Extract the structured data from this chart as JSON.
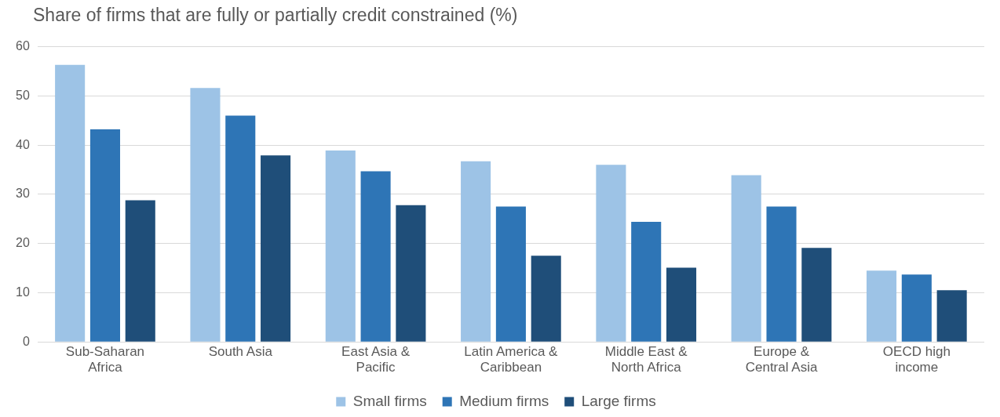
{
  "chart_data": {
    "type": "bar",
    "title": "Share of firms that are fully or partially credit constrained (%)",
    "categories": [
      "Sub-Saharan Africa",
      "South Asia",
      "East Asia & Pacific",
      "Latin America & Caribbean",
      "Middle East & North Africa",
      "Europe & Central Asia",
      "OECD high income"
    ],
    "series": [
      {
        "name": "Small firms",
        "color": "#9dc3e6",
        "values": [
          56.3,
          51.6,
          38.9,
          36.7,
          36.0,
          33.9,
          14.5
        ]
      },
      {
        "name": "Medium firms",
        "color": "#2e75b6",
        "values": [
          43.2,
          46.0,
          34.7,
          27.5,
          24.4,
          27.5,
          13.7
        ]
      },
      {
        "name": "Large firms",
        "color": "#1f4e79",
        "values": [
          28.8,
          37.9,
          27.8,
          17.5,
          15.1,
          19.1,
          10.5
        ]
      }
    ],
    "ylim": [
      0,
      60
    ],
    "yticks": [
      0,
      10,
      20,
      30,
      40,
      50,
      60
    ],
    "grid": "y",
    "legend": "bottom"
  }
}
